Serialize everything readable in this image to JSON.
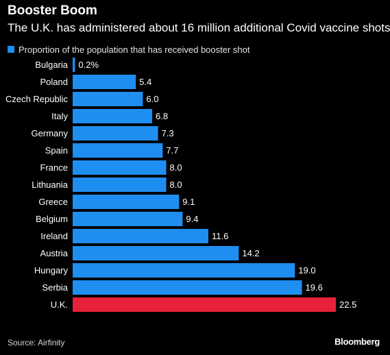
{
  "chart_data": {
    "type": "bar",
    "orientation": "horizontal",
    "title": "Booster Boom",
    "subtitle": "The U.K. has administered about 16 million additional Covid vaccine shots",
    "categories": [
      "Bulgaria",
      "Poland",
      "Czech Republic",
      "Italy",
      "Germany",
      "Spain",
      "France",
      "Lithuania",
      "Greece",
      "Belgium",
      "Ireland",
      "Austria",
      "Hungary",
      "Serbia",
      "U.K."
    ],
    "series": [
      {
        "name": "Proportion of the population that has received booster shot",
        "values": [
          0.2,
          5.4,
          6.0,
          6.8,
          7.3,
          7.7,
          8.0,
          8.0,
          9.1,
          9.4,
          11.6,
          14.2,
          19.0,
          19.6,
          22.5
        ]
      }
    ],
    "value_labels": [
      "0.2%",
      "5.4",
      "6.0",
      "6.8",
      "7.3",
      "7.7",
      "8.0",
      "8.0",
      "9.1",
      "9.4",
      "11.6",
      "14.2",
      "19.0",
      "19.6",
      "22.5"
    ],
    "highlight": "U.K.",
    "xlim": [
      0,
      22.5
    ],
    "grid": false,
    "legend_position": "top-left",
    "colors": {
      "bar": "#1f8ef1",
      "highlight": "#e8213a",
      "background": "#000000",
      "text": "#ffffff"
    }
  },
  "footer": {
    "source": "Source: Airfinity",
    "brand": "Bloomberg"
  }
}
